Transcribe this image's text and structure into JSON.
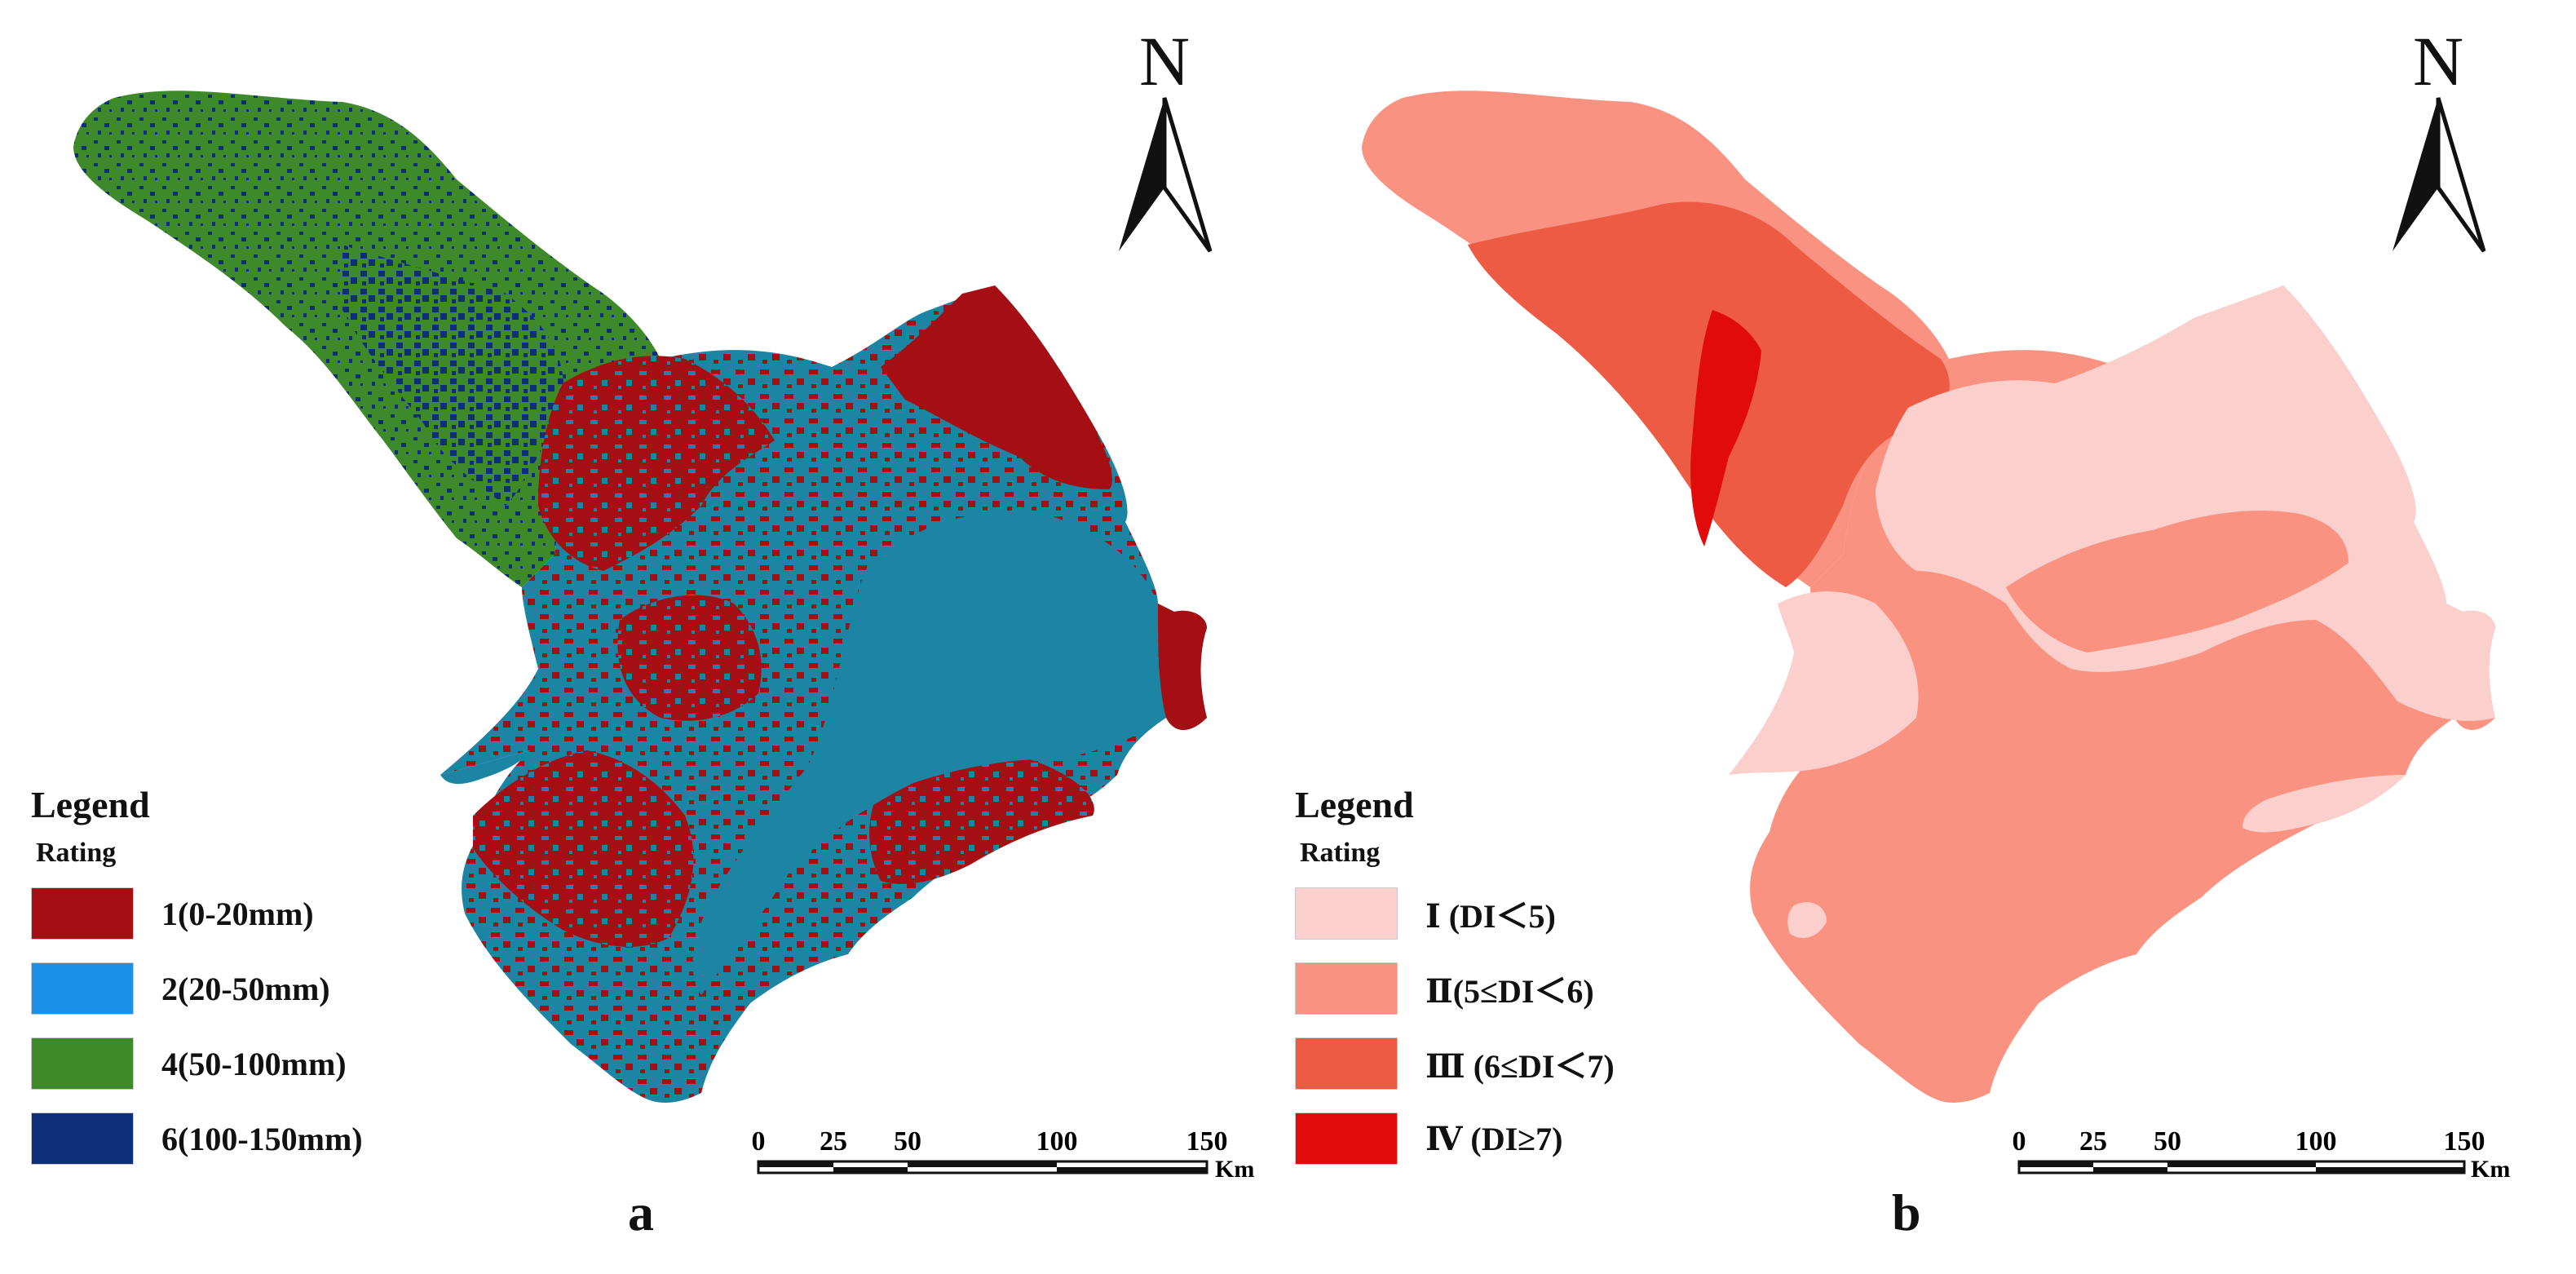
{
  "figure": {
    "panels": [
      {
        "id": "a",
        "label": "a",
        "legend": {
          "title": "Legend",
          "subtitle": "Rating",
          "items": [
            {
              "label": "1(0-20mm)",
              "color": "#a50e12"
            },
            {
              "label": "2(20-50mm)",
              "color": "#1c8fe8"
            },
            {
              "label": "4(50-100mm)",
              "color": "#3e8a2a"
            },
            {
              "label": "6(100-150mm)",
              "color": "#0d2f7a"
            }
          ]
        },
        "region_colors": {
          "background_class": "#1b85a3"
        },
        "north_arrow": "N",
        "scale_bar": {
          "ticks": [
            "0",
            "25",
            "50",
            "100",
            "150"
          ],
          "unit": "Km"
        }
      },
      {
        "id": "b",
        "label": "b",
        "legend": {
          "title": "Legend",
          "subtitle": "Rating",
          "items": [
            {
              "label": "Ⅰ (DI＜5)",
              "color": "#fbcfcc"
            },
            {
              "label": "Ⅱ(5≤DI＜6)",
              "color": "#f99280"
            },
            {
              "label": "Ⅲ (6≤DI＜7)",
              "color": "#ee5b45"
            },
            {
              "label": "Ⅳ (DI≥7)",
              "color": "#e10b0b"
            }
          ]
        },
        "north_arrow": "N",
        "scale_bar": {
          "ticks": [
            "0",
            "25",
            "50",
            "100",
            "150"
          ],
          "unit": "Km"
        }
      }
    ]
  }
}
